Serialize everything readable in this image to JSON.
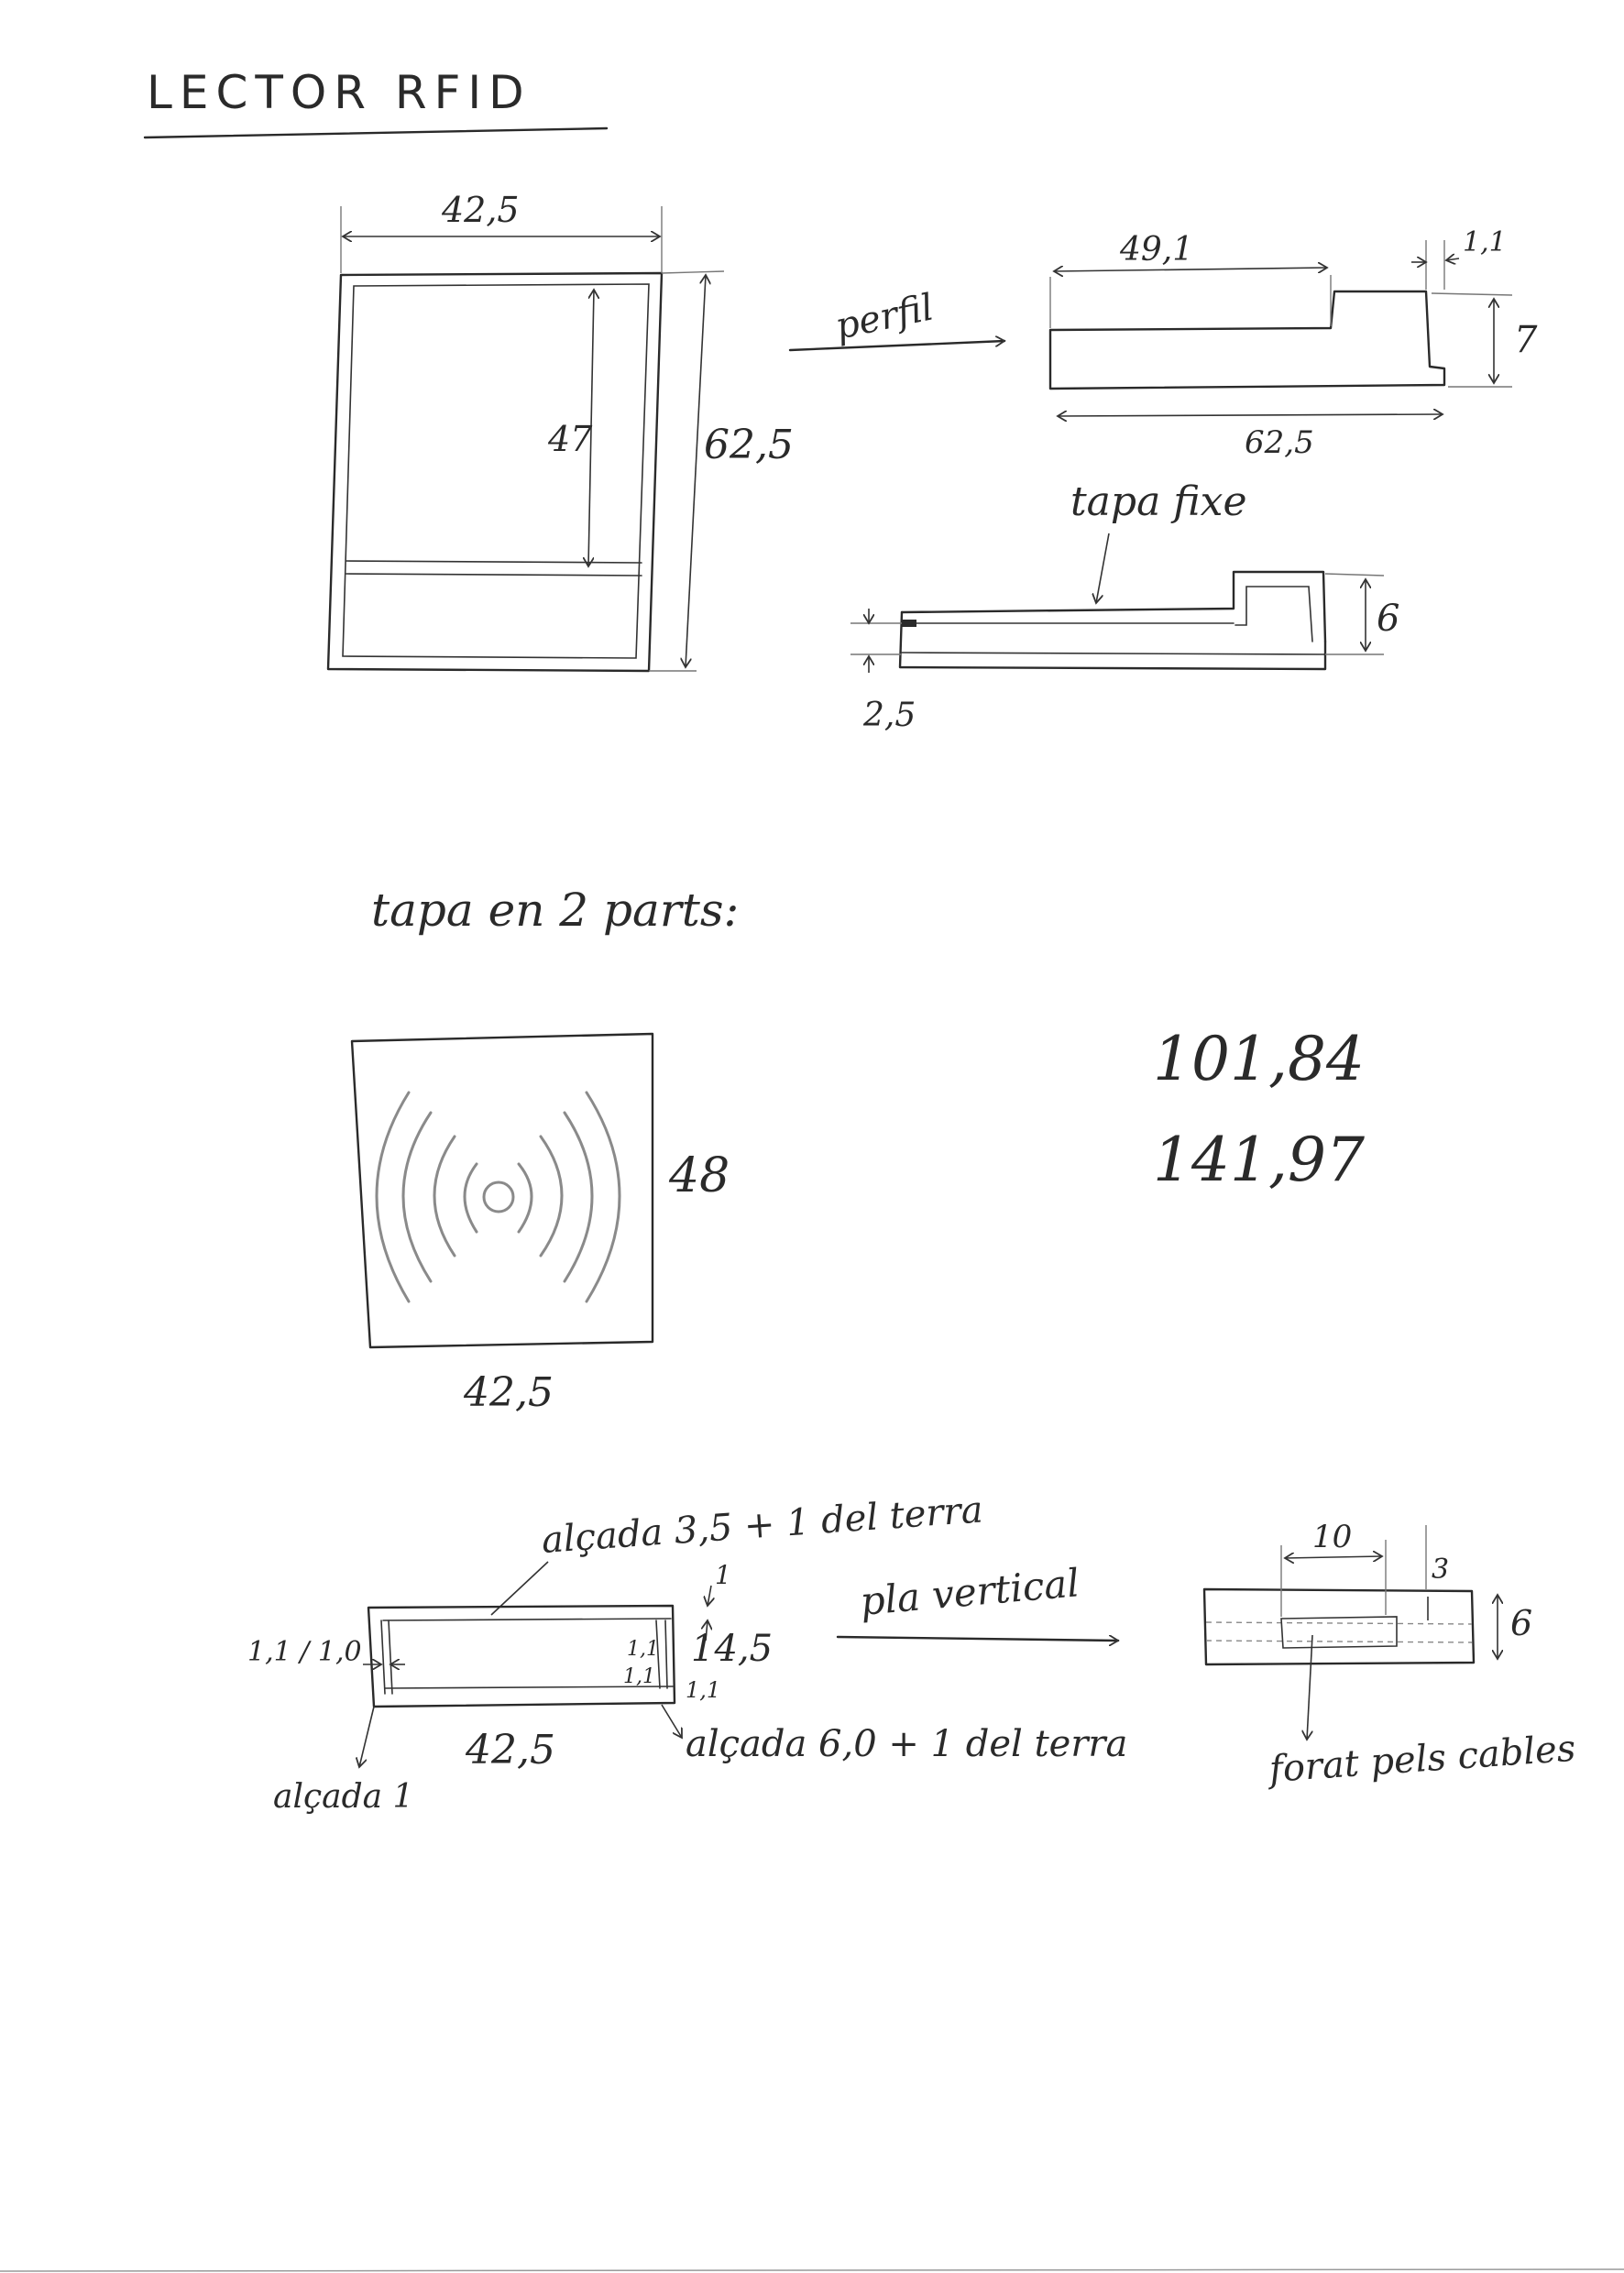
{
  "title": "LECTOR RFID",
  "front_view": {
    "width_label": "42,5",
    "inner_height_label": "47",
    "height_label": "62,5"
  },
  "profile": {
    "arrow_label": "perfil",
    "top_length_label": "49,1",
    "step_label": "1,1",
    "height_label": "7",
    "bottom_length_label": "62,5"
  },
  "fixed_lid": {
    "label": "tapa fixe",
    "height_label": "6",
    "thickness_label": "2,5"
  },
  "lid_two_parts": {
    "label": "tapa en 2 parts:",
    "height_label": "48",
    "width_label": "42,5"
  },
  "numbers": [
    "101,84",
    "141,97"
  ],
  "bottom_plan": {
    "top_note": "alçada 3,5 + 1 del terra",
    "top_dim": "1",
    "left_dim": "1,1 / 1,0",
    "right_dims": [
      "1,1",
      "1,1",
      "1,1"
    ],
    "height_label": "14,5",
    "width_label": "42,5",
    "bottom_note": "alçada 6,0 + 1 del terra",
    "left_note": "alçada 1"
  },
  "vertical_plane": {
    "arrow_label": "pla vertical",
    "width_label": "10",
    "small_dim": "3",
    "height_label": "6",
    "hole_note": "forat pels cables"
  }
}
